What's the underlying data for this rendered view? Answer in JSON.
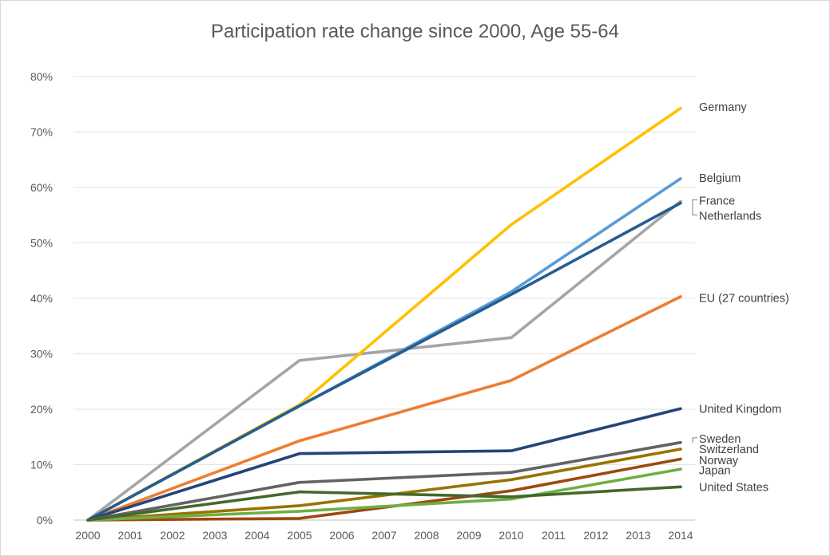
{
  "chart_data": {
    "type": "line",
    "title": "Participation rate change since 2000, Age 55-64",
    "xlabel": "",
    "ylabel": "",
    "x": [
      2000,
      2001,
      2002,
      2003,
      2004,
      2005,
      2006,
      2007,
      2008,
      2009,
      2010,
      2011,
      2012,
      2013,
      2014
    ],
    "x_ticks": [
      "2000",
      "2001",
      "2002",
      "2003",
      "2004",
      "2005",
      "2006",
      "2007",
      "2008",
      "2009",
      "2010",
      "2011",
      "2012",
      "2013",
      "2014"
    ],
    "ylim": [
      0,
      80
    ],
    "y_ticks": [
      "0%",
      "10%",
      "20%",
      "30%",
      "40%",
      "50%",
      "60%",
      "70%",
      "80%"
    ],
    "grid": "horizontal",
    "legend": "direct labels at right end of lines",
    "series": [
      {
        "name": "Netherlands",
        "color": "#a5a5a5",
        "points": [
          [
            2000,
            0
          ],
          [
            2005,
            28.8
          ],
          [
            2010,
            32.9
          ],
          [
            2014,
            57.5
          ]
        ]
      },
      {
        "name": "EU (27 countries)",
        "color": "#ed7d31",
        "points": [
          [
            2000,
            0
          ],
          [
            2005,
            14.3
          ],
          [
            2010,
            25.2
          ],
          [
            2014,
            40.3
          ]
        ]
      },
      {
        "name": "Germany",
        "color": "#ffc000",
        "points": [
          [
            2000,
            0
          ],
          [
            2005,
            20.8
          ],
          [
            2010,
            53.3
          ],
          [
            2014,
            74.3
          ]
        ]
      },
      {
        "name": "Belgium",
        "color": "#5b9bd5",
        "points": [
          [
            2000,
            0
          ],
          [
            2005,
            20.6
          ],
          [
            2010,
            41.2
          ],
          [
            2014,
            61.6
          ]
        ]
      },
      {
        "name": "France",
        "color": "#255e91",
        "points": [
          [
            2000,
            0
          ],
          [
            2005,
            20.6
          ],
          [
            2010,
            40.7
          ],
          [
            2014,
            57.2
          ]
        ]
      },
      {
        "name": "United Kingdom",
        "color": "#264478",
        "points": [
          [
            2000,
            0
          ],
          [
            2005,
            12.0
          ],
          [
            2010,
            12.5
          ],
          [
            2014,
            20.1
          ]
        ]
      },
      {
        "name": "Sweden",
        "color": "#636363",
        "points": [
          [
            2000,
            0
          ],
          [
            2005,
            6.8
          ],
          [
            2010,
            8.6
          ],
          [
            2014,
            14.0
          ]
        ]
      },
      {
        "name": "Switzerland",
        "color": "#997300",
        "points": [
          [
            2000,
            0
          ],
          [
            2005,
            2.6
          ],
          [
            2010,
            7.3
          ],
          [
            2014,
            12.8
          ]
        ]
      },
      {
        "name": "Norway",
        "color": "#9e480e",
        "points": [
          [
            2000,
            0
          ],
          [
            2005,
            0.3
          ],
          [
            2010,
            5.3
          ],
          [
            2014,
            11.0
          ]
        ]
      },
      {
        "name": "Japan",
        "color": "#70ad47",
        "points": [
          [
            2000,
            0
          ],
          [
            2005,
            1.6
          ],
          [
            2010,
            3.8
          ],
          [
            2014,
            9.2
          ]
        ]
      },
      {
        "name": "United States",
        "color": "#43682b",
        "points": [
          [
            2000,
            0
          ],
          [
            2005,
            5.1
          ],
          [
            2010,
            4.2
          ],
          [
            2014,
            6.0
          ]
        ]
      }
    ],
    "labels": [
      {
        "text": "Germany",
        "y": 74.5
      },
      {
        "text": "Belgium",
        "y": 61.7
      },
      {
        "text": "France",
        "y": 57.6
      },
      {
        "text": "Netherlands",
        "y": 54.9
      },
      {
        "text": "EU (27 countries)",
        "y": 40.1
      },
      {
        "text": "United Kingdom",
        "y": 20.1
      },
      {
        "text": "Sweden",
        "y": 14.7
      },
      {
        "text": "Switzerland",
        "y": 12.8
      },
      {
        "text": "Norway",
        "y": 10.8
      },
      {
        "text": "Japan",
        "y": 9.0
      },
      {
        "text": "United States",
        "y": 6.0
      }
    ]
  }
}
